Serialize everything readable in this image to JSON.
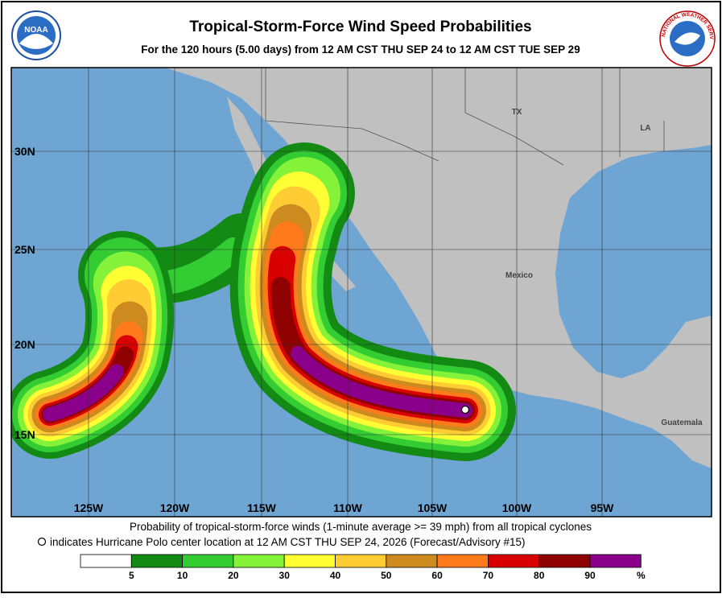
{
  "header": {
    "title": "Tropical-Storm-Force Wind Speed Probabilities",
    "subtitle": "For the 120 hours (5.00 days) from 12 AM CST THU SEP 24 to 12 AM CST TUE SEP 29",
    "noaa_logo": "NOAA",
    "nws_logo": "NATIONAL WEATHER SERVICE"
  },
  "map": {
    "lat_labels": [
      "30N",
      "25N",
      "20N",
      "15N"
    ],
    "lon_labels": [
      "125W",
      "120W",
      "115W",
      "110W",
      "105W",
      "100W",
      "95W"
    ],
    "places": [
      "TX",
      "LA",
      "Mexico",
      "Guatemala"
    ],
    "land_color": "#c0c0c0",
    "ocean_color": "#6fa5d3"
  },
  "footer": {
    "line1": "Probability of tropical-storm-force winds (1-minute average >= 39 mph) from all tropical cyclones",
    "line2": "indicates Hurricane Polo center location at 12 AM CST THU SEP 24, 2026 (Forecast/Advisory #15)"
  },
  "legend": {
    "colors": [
      "#ffffff",
      "#138a13",
      "#33cc33",
      "#85f23a",
      "#ffff33",
      "#ffcc33",
      "#cc8a1f",
      "#ff7a1a",
      "#d90000",
      "#8f0000",
      "#8b008b"
    ],
    "labels": [
      5,
      10,
      20,
      30,
      40,
      50,
      60,
      70,
      80,
      90
    ],
    "unit": "%"
  }
}
